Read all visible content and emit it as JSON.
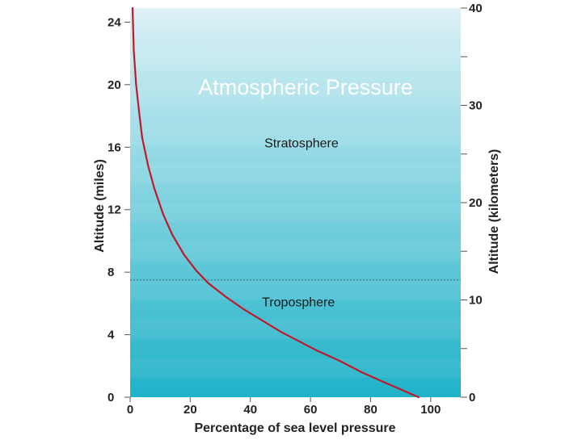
{
  "chart_data": {
    "type": "line",
    "title": "Atmospheric Pressure",
    "xlabel": "Percentage of sea level pressure",
    "ylabel": "Altitude (miles)",
    "y2label": "Altitude (kilometers)",
    "xlim": [
      0,
      110
    ],
    "ylim": [
      0,
      24.9
    ],
    "y2lim": [
      0,
      40
    ],
    "xticks": [
      0,
      20,
      40,
      60,
      80,
      100
    ],
    "yticks": [
      0,
      4,
      8,
      12,
      16,
      20,
      24
    ],
    "y2ticks": [
      0,
      10,
      20,
      30,
      40
    ],
    "grid": false,
    "series": [
      {
        "color": "#c0192b",
        "points": [
          [
            96,
            0
          ],
          [
            90,
            0.5
          ],
          [
            84,
            1
          ],
          [
            77,
            1.6
          ],
          [
            70,
            2.3
          ],
          [
            62,
            3
          ],
          [
            56,
            3.6
          ],
          [
            50,
            4.2
          ],
          [
            44,
            4.9
          ],
          [
            38,
            5.6
          ],
          [
            32,
            6.4
          ],
          [
            26,
            7.3
          ],
          [
            22,
            8.1
          ],
          [
            18,
            9.1
          ],
          [
            14,
            10.4
          ],
          [
            11,
            11.7
          ],
          [
            8,
            13.4
          ],
          [
            6,
            14.8
          ],
          [
            4,
            16.6
          ],
          [
            3,
            18.2
          ],
          [
            2,
            20
          ],
          [
            1.2,
            22.2
          ],
          [
            0.8,
            24.9
          ]
        ]
      }
    ],
    "annotations": [
      {
        "text": "Stratosphere",
        "x": 57,
        "y": 16
      },
      {
        "text": "Troposphere",
        "x": 56,
        "y": 5.8
      }
    ],
    "reference_lines": [
      {
        "axis": "y",
        "value": 7.5,
        "style": "dotted"
      }
    ],
    "background": {
      "gradient_top": "#dcf1f6",
      "gradient_bottom": "#1fb2c8"
    }
  }
}
